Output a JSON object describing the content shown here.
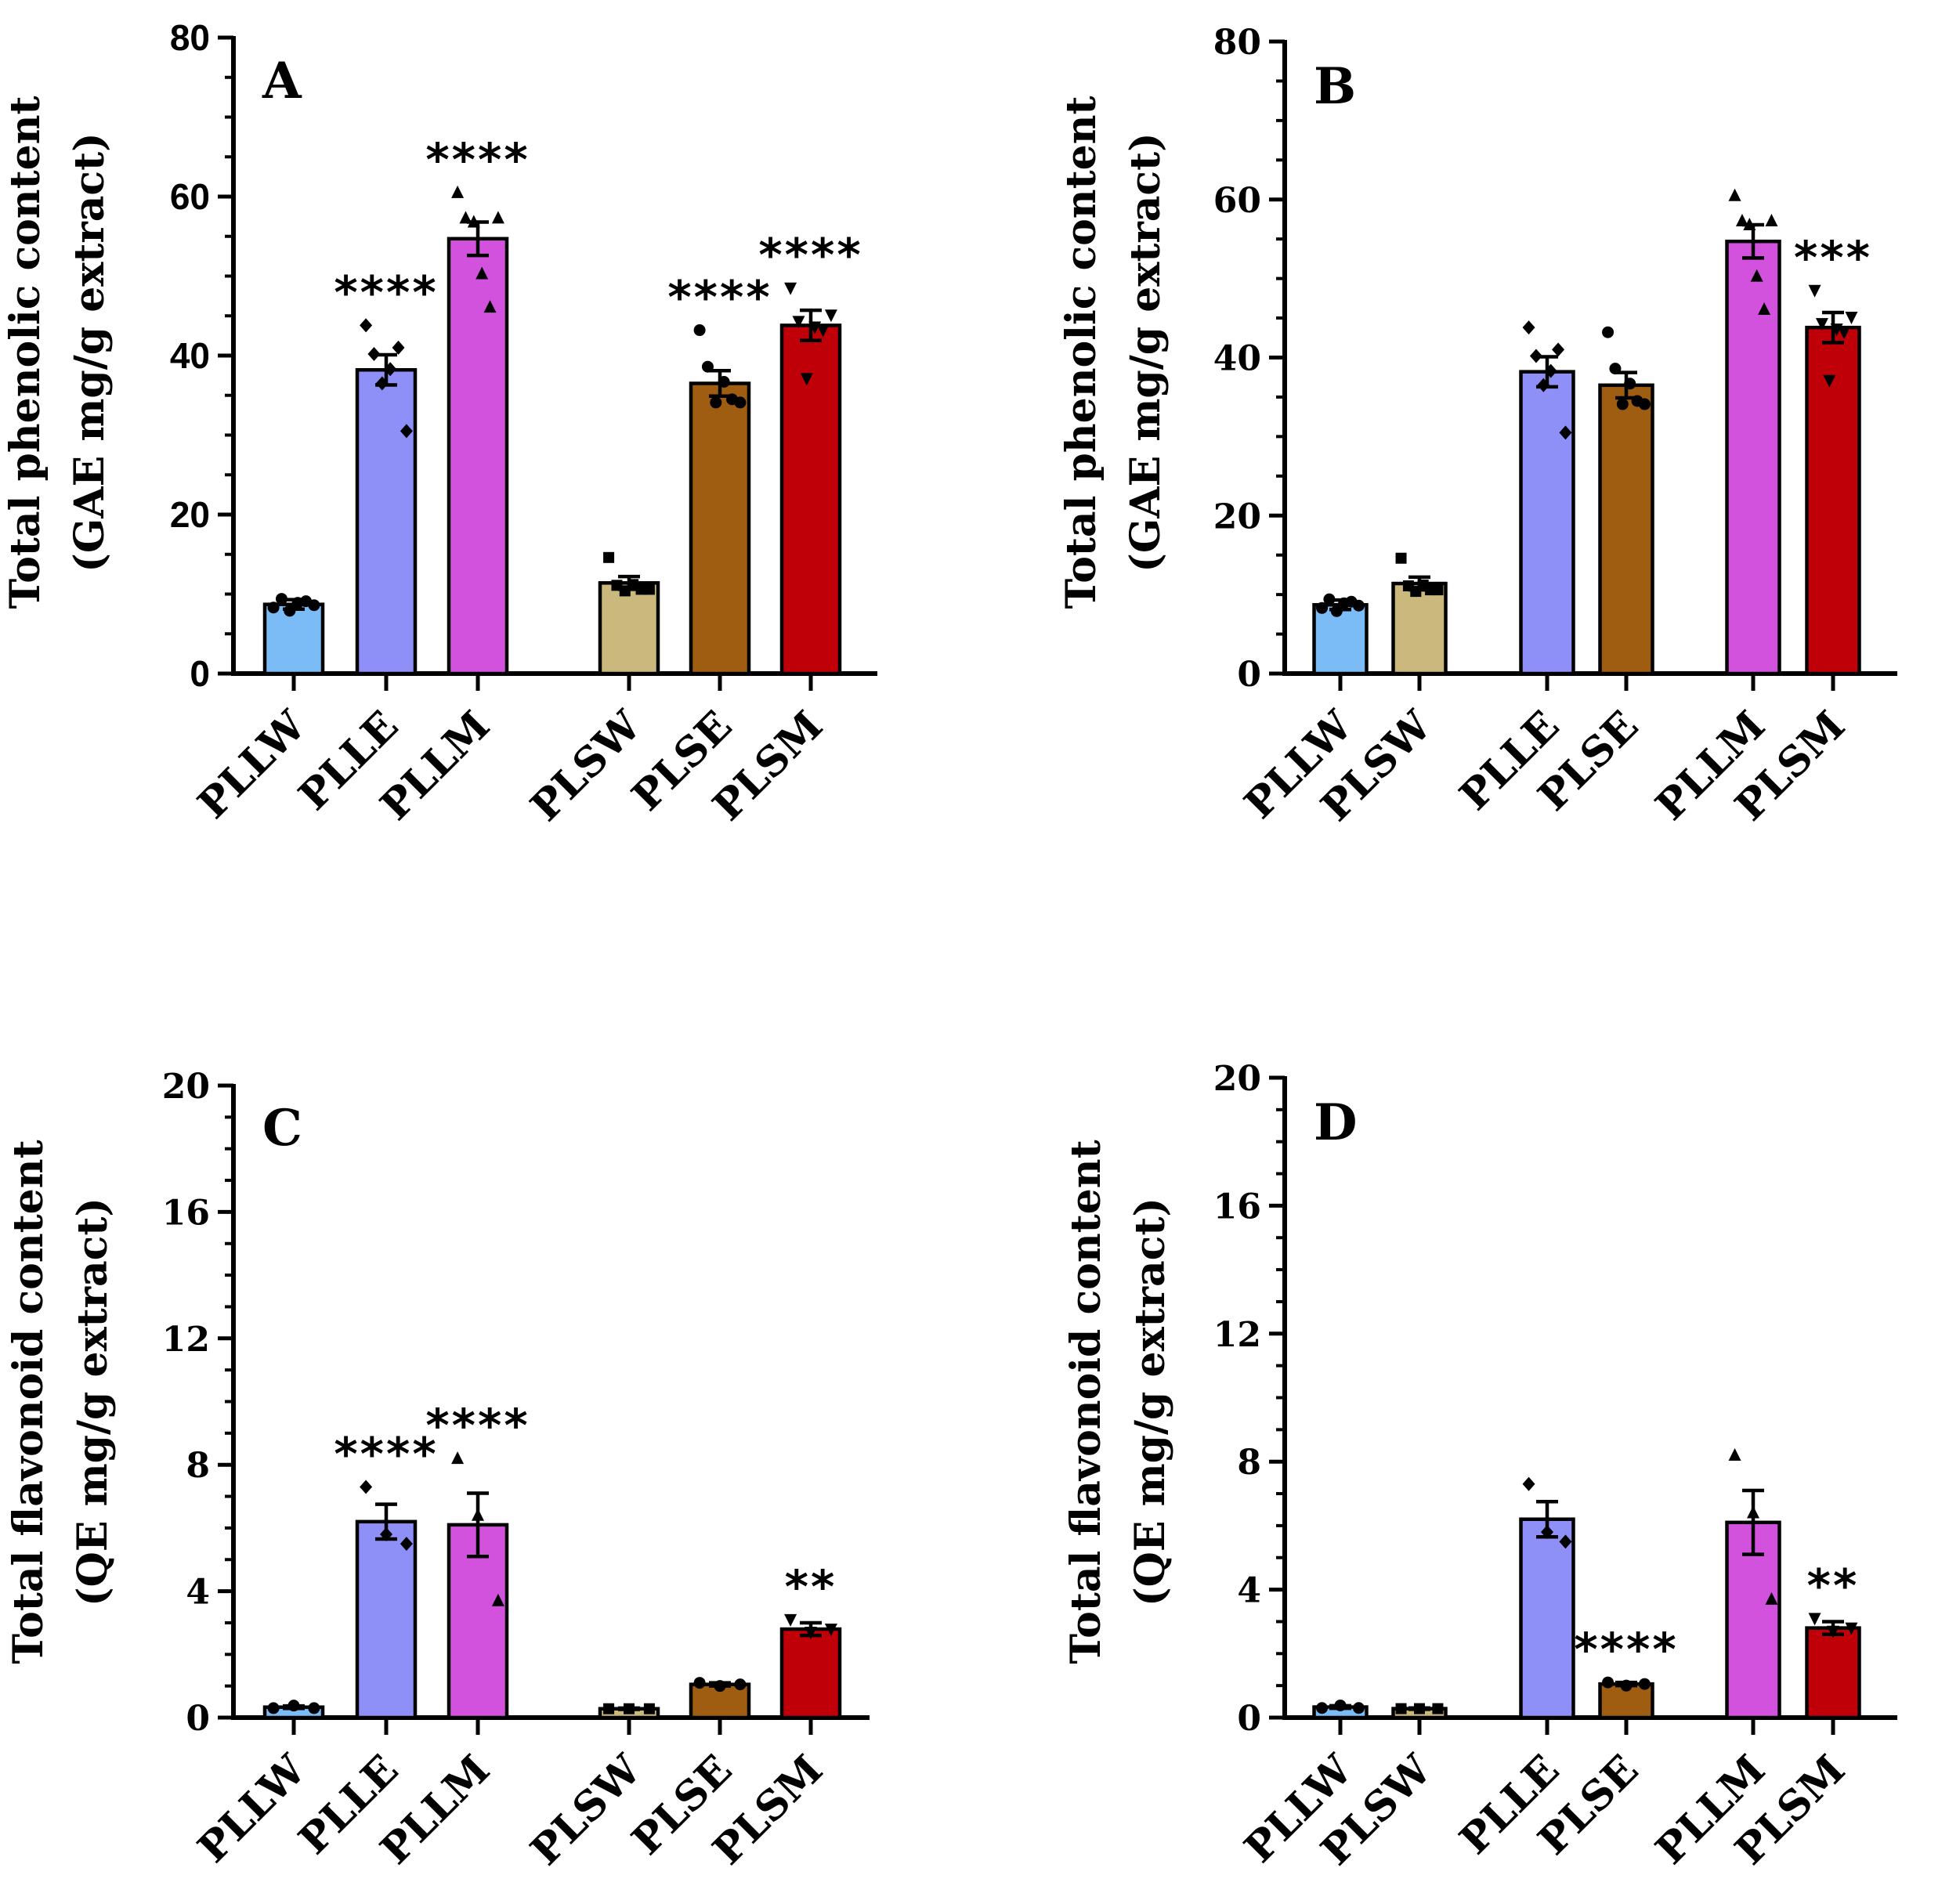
{
  "figure": {
    "panels": [
      "A",
      "B",
      "C",
      "D"
    ]
  },
  "chart_data": [
    {
      "panel": "A",
      "type": "bar",
      "title": "",
      "ylabel_line1": "Total phenolic content",
      "ylabel_line2": "(GAE mg/g extract)",
      "xlabel": "",
      "ylim": [
        0,
        80
      ],
      "yticks": [
        0,
        20,
        40,
        60,
        80
      ],
      "categories": [
        "PLLW",
        "PLLE",
        "PLLM",
        "PLSW",
        "PLSE",
        "PLSM"
      ],
      "values": [
        8.7,
        38.2,
        54.7,
        11.4,
        36.5,
        43.8
      ],
      "errors": [
        0.6,
        1.9,
        2.1,
        0.8,
        1.6,
        1.9
      ],
      "significance": [
        "",
        "****",
        "****",
        "",
        "****",
        "****"
      ],
      "colors": [
        "#7bbcf7",
        "#8f8ff8",
        "#d352dd",
        "#cab87c",
        "#9e5d10",
        "#c00008"
      ],
      "markers": [
        "circle",
        "diamond",
        "triangle-up",
        "square",
        "circle",
        "triangle-down"
      ],
      "points": [
        [
          8.3,
          9.4,
          7.9,
          8.9,
          9.1,
          8.6
        ],
        [
          43.8,
          40.2,
          36.5,
          38.3,
          41.0,
          30.5
        ],
        [
          60.5,
          57.3,
          56.8,
          50.3,
          46.1,
          57.3
        ],
        [
          14.6,
          11.1,
          10.4,
          11.2,
          10.6,
          10.6
        ],
        [
          43.2,
          38.6,
          34.1,
          36.7,
          34.5,
          34.1
        ],
        [
          48.5,
          44.3,
          37.1,
          43.6,
          43.2,
          45.1
        ]
      ]
    },
    {
      "panel": "B",
      "type": "bar",
      "title": "",
      "ylabel_line1": "Total phenolic content",
      "ylabel_line2": "(GAE mg/g extract)",
      "xlabel": "",
      "ylim": [
        0,
        80
      ],
      "yticks": [
        0,
        20,
        40,
        60,
        80
      ],
      "categories": [
        "PLLW",
        "PLSW",
        "PLLE",
        "PLSE",
        "PLLM",
        "PLSM"
      ],
      "values": [
        8.7,
        11.4,
        38.2,
        36.5,
        54.7,
        43.8
      ],
      "errors": [
        0.6,
        0.8,
        1.9,
        1.6,
        2.1,
        1.9
      ],
      "significance": [
        "",
        "",
        "",
        "",
        "",
        "***"
      ],
      "colors": [
        "#7bbcf7",
        "#cab87c",
        "#8f8ff8",
        "#9e5d10",
        "#d352dd",
        "#c00008"
      ],
      "markers": [
        "circle",
        "square",
        "diamond",
        "circle",
        "triangle-up",
        "triangle-down"
      ],
      "points": [
        [
          8.3,
          9.4,
          7.9,
          8.9,
          9.1,
          8.6
        ],
        [
          14.6,
          11.1,
          10.4,
          11.2,
          10.6,
          10.6
        ],
        [
          43.8,
          40.2,
          36.5,
          38.3,
          41.0,
          30.5
        ],
        [
          43.2,
          38.6,
          34.1,
          36.7,
          34.5,
          34.1
        ],
        [
          60.5,
          57.3,
          56.8,
          50.3,
          46.1,
          57.3
        ],
        [
          48.5,
          44.3,
          37.1,
          43.6,
          43.2,
          45.1
        ]
      ]
    },
    {
      "panel": "C",
      "type": "bar",
      "title": "",
      "ylabel_line1": "Total flavonoid content",
      "ylabel_line2": "(QE mg/g extract)",
      "xlabel": "",
      "ylim": [
        0,
        20
      ],
      "yticks": [
        0,
        4,
        8,
        12,
        16,
        20
      ],
      "categories": [
        "PLLW",
        "PLLE",
        "PLLM",
        "PLSW",
        "PLSE",
        "PLSM"
      ],
      "values": [
        0.33,
        6.2,
        6.1,
        0.28,
        1.05,
        2.8
      ],
      "errors": [
        0.04,
        0.55,
        1.0,
        0.02,
        0.05,
        0.2
      ],
      "significance": [
        "",
        "****",
        "****",
        "",
        "",
        "**"
      ],
      "colors": [
        "#7bbcf7",
        "#8f8ff8",
        "#d352dd",
        "#cab87c",
        "#9e5d10",
        "#c00008"
      ],
      "markers": [
        "circle",
        "diamond",
        "triangle-up",
        "square",
        "circle",
        "triangle-down"
      ],
      "points": [
        [
          0.3,
          0.38,
          0.3
        ],
        [
          7.3,
          5.8,
          5.5
        ],
        [
          8.2,
          6.4,
          3.7
        ],
        [
          0.28,
          0.28,
          0.28
        ],
        [
          1.1,
          1.0,
          1.05
        ],
        [
          3.1,
          2.7,
          2.8
        ]
      ]
    },
    {
      "panel": "D",
      "type": "bar",
      "title": "",
      "ylabel_line1": "Total flavonoid content",
      "ylabel_line2": "(QE mg/g extract)",
      "xlabel": "",
      "ylim": [
        0,
        20
      ],
      "yticks": [
        0,
        4,
        8,
        12,
        16,
        20
      ],
      "categories": [
        "PLLW",
        "PLSW",
        "PLLE",
        "PLSE",
        "PLLM",
        "PLSM"
      ],
      "values": [
        0.33,
        0.28,
        6.2,
        1.05,
        6.1,
        2.8
      ],
      "errors": [
        0.04,
        0.02,
        0.55,
        0.05,
        1.0,
        0.2
      ],
      "significance": [
        "",
        "",
        "",
        "****",
        "",
        "**"
      ],
      "colors": [
        "#7bbcf7",
        "#cab87c",
        "#8f8ff8",
        "#9e5d10",
        "#d352dd",
        "#c00008"
      ],
      "markers": [
        "circle",
        "square",
        "diamond",
        "circle",
        "triangle-up",
        "triangle-down"
      ],
      "points": [
        [
          0.3,
          0.38,
          0.3
        ],
        [
          0.28,
          0.28,
          0.28
        ],
        [
          7.3,
          5.8,
          5.5
        ],
        [
          1.1,
          1.0,
          1.05
        ],
        [
          8.2,
          6.4,
          3.7
        ],
        [
          3.1,
          2.7,
          2.8
        ]
      ]
    }
  ]
}
